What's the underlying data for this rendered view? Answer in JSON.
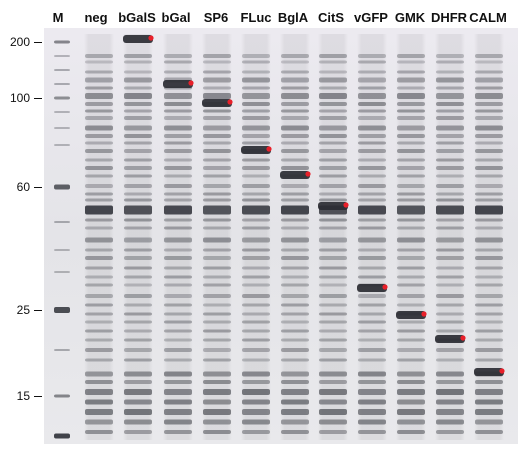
{
  "lanes": [
    "M",
    "neg",
    "bGalS",
    "bGal",
    "SP6",
    "FLuc",
    "BglA",
    "CitS",
    "vGFP",
    "GMK",
    "DHFR",
    "CALM"
  ],
  "markers": [
    "200",
    "100",
    "60",
    "25",
    "15"
  ],
  "colors": {
    "background": "#ffffff",
    "gel_base": "#e7e7e9",
    "band_dark": "#3b3d44",
    "highlight_dot": "#e8202a"
  },
  "highlighted_lanes": [
    "bGalS",
    "bGal",
    "SP6",
    "FLuc",
    "BglA",
    "CitS",
    "vGFP",
    "GMK",
    "DHFR",
    "CALM"
  ]
}
